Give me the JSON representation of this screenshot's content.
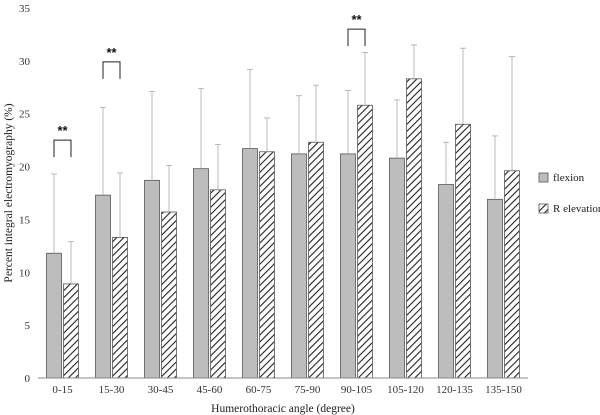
{
  "chart_data": {
    "type": "bar",
    "xlabel": "Humerothoracic angle (degree)",
    "ylabel": "Percent integral electromyography (%)",
    "ylim": [
      0,
      35
    ],
    "yticks": [
      "0",
      "5",
      "10",
      "15",
      "20",
      "25",
      "30",
      "35"
    ],
    "grid": false,
    "legend_position": "right",
    "categories": [
      "0-15",
      "15-30",
      "30-45",
      "45-60",
      "60-75",
      "75-90",
      "90-105",
      "105-120",
      "120-135",
      "135-150"
    ],
    "series": [
      {
        "name": "flexion",
        "fill": "solid-gray",
        "values": [
          11.8,
          17.3,
          18.7,
          19.8,
          21.7,
          21.2,
          21.2,
          20.8,
          18.3,
          16.9
        ],
        "error_upper": [
          19.3,
          25.6,
          27.1,
          27.4,
          29.2,
          26.7,
          27.2,
          26.3,
          22.3,
          22.9
        ]
      },
      {
        "name": "R elevation",
        "fill": "hatched",
        "values": [
          8.9,
          13.3,
          15.7,
          17.8,
          21.4,
          22.3,
          25.8,
          28.3,
          24.0,
          19.6
        ],
        "error_upper": [
          12.9,
          19.4,
          20.1,
          22.1,
          24.6,
          27.7,
          30.8,
          31.5,
          31.2,
          30.4
        ]
      }
    ],
    "significance": [
      {
        "category": "0-15",
        "label": "**",
        "bracket_y": 22.5
      },
      {
        "category": "15-30",
        "label": "**",
        "bracket_y": 29.9
      },
      {
        "category": "90-105",
        "label": "**",
        "bracket_y": 33.0
      }
    ],
    "colors": {
      "bar_fill": "#bdbdbd",
      "bar_stroke": "#555555",
      "error": "#aaaaaa",
      "axis": "#888888"
    }
  }
}
